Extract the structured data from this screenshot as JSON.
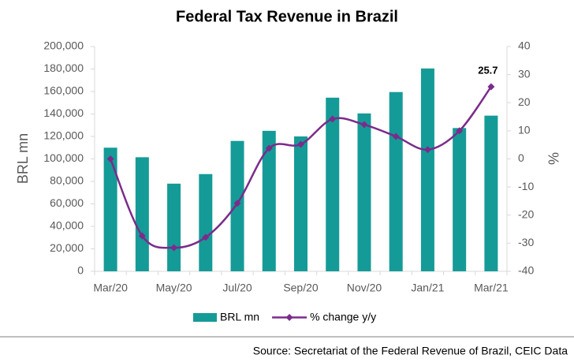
{
  "chart_data": {
    "type": "bar-line",
    "title": "Federal Tax Revenue in Brazil",
    "y_label": "BRL mn",
    "y2_label": "%",
    "source": "Source: Secretariat of the Federal Revenue of Brazil, CEIC Data",
    "categories": [
      "Mar/20",
      null,
      "May/20",
      null,
      "Jul/20",
      null,
      "Sep/20",
      null,
      "Nov/20",
      null,
      "Jan/21",
      null,
      "Mar/21"
    ],
    "series": [
      {
        "name": "BRL mn",
        "type": "bar",
        "color": "#159b97",
        "values": [
          110000,
          101500,
          78000,
          86500,
          116000,
          125000,
          120000,
          154500,
          140500,
          159500,
          180500,
          127500,
          138500
        ]
      },
      {
        "name": "% change y/y",
        "type": "line",
        "axis": "y2",
        "color": "#7b2c8b",
        "data_labels": "last",
        "values": [
          0,
          -27.4,
          -31.6,
          -27.9,
          -15.8,
          3.8,
          5.2,
          14.2,
          12.2,
          8,
          3.3,
          10,
          25.7
        ]
      }
    ],
    "ylim": [
      0,
      200000
    ],
    "yticks": [
      0,
      {
        "value": 20000,
        "label": "20,000"
      },
      {
        "value": 40000,
        "label": "40,000"
      },
      {
        "value": 60000,
        "label": "60,000"
      },
      {
        "value": 80000,
        "label": "80,000"
      },
      {
        "value": 100000,
        "label": "100,000"
      },
      {
        "value": 120000,
        "label": "120,000"
      },
      {
        "value": 140000,
        "label": "140,000"
      },
      {
        "value": 160000,
        "label": "160,000"
      },
      {
        "value": 180000,
        "label": "180,000"
      },
      {
        "value": 200000,
        "label": "200,000"
      }
    ],
    "y2lim": [
      -40,
      40
    ],
    "y2ticks": [
      -40,
      -30,
      -20,
      -10,
      0,
      10,
      20,
      30,
      40
    ],
    "legend": "bottom"
  }
}
